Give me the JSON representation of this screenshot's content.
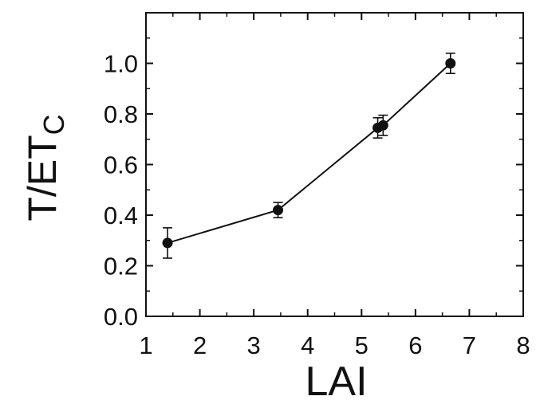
{
  "chart_data": {
    "type": "line",
    "xlabel": "LAI",
    "ylabel": {
      "main": "T/ET",
      "subscript": "C"
    },
    "xlim": [
      1,
      8
    ],
    "ylim": [
      0.0,
      1.2
    ],
    "xticks": [
      "1",
      "2",
      "3",
      "4",
      "5",
      "6",
      "7",
      "8"
    ],
    "yticks": [
      "0.0",
      "0.2",
      "0.4",
      "0.6",
      "0.8",
      "1.0"
    ],
    "grid": false,
    "series": [
      {
        "x": [
          1.4,
          3.45,
          5.3,
          5.4,
          6.65
        ],
        "y": [
          0.29,
          0.42,
          0.745,
          0.755,
          1.0
        ],
        "error": [
          0.06,
          0.03,
          0.04,
          0.04,
          0.04
        ]
      }
    ]
  }
}
